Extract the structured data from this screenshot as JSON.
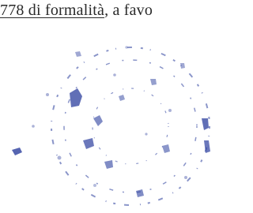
{
  "text": {
    "underlined": "778 di formalità",
    "rest": ", a favo"
  }
}
